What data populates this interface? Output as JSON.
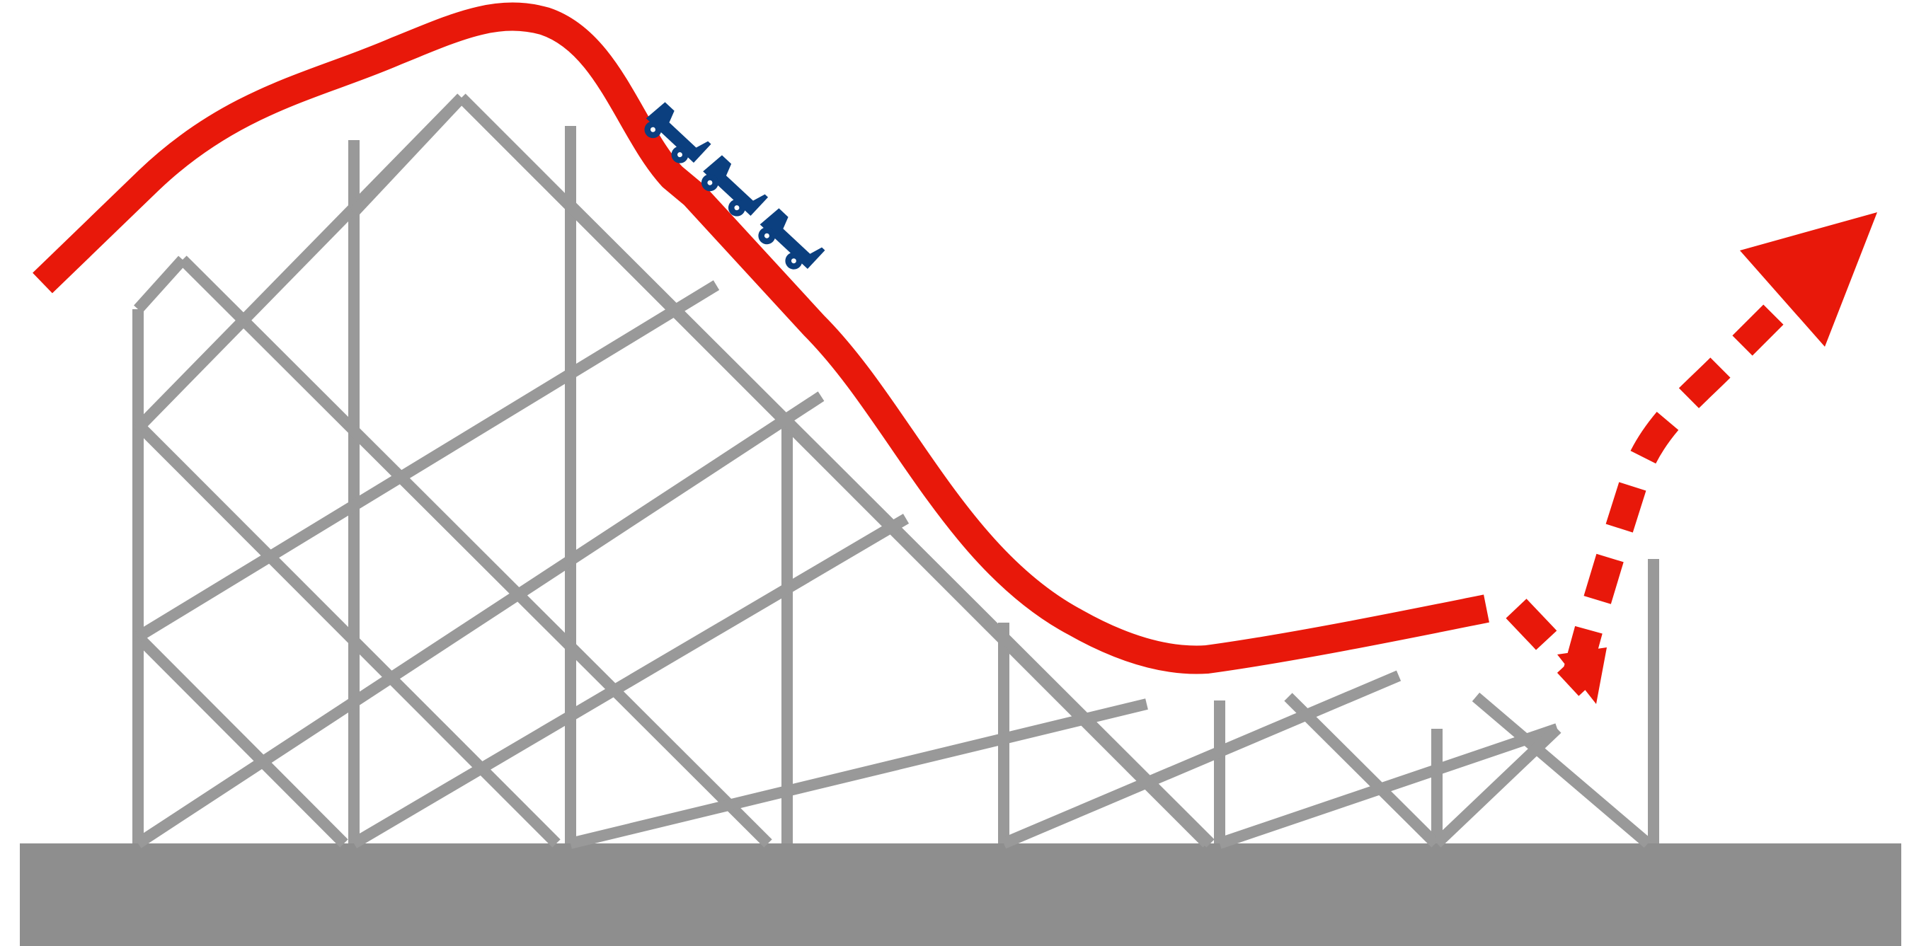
{
  "illustration": {
    "subject": "roller-coaster",
    "colors": {
      "background": "#ffffff",
      "ground": "#8e8e8e",
      "scaffold": "#999999",
      "track": "#e8180a",
      "train": "#0b3f7f"
    },
    "icons": {
      "train": "coaster-train-icon",
      "arrow": "arrow-up-right-icon"
    },
    "train_cars": 3
  }
}
